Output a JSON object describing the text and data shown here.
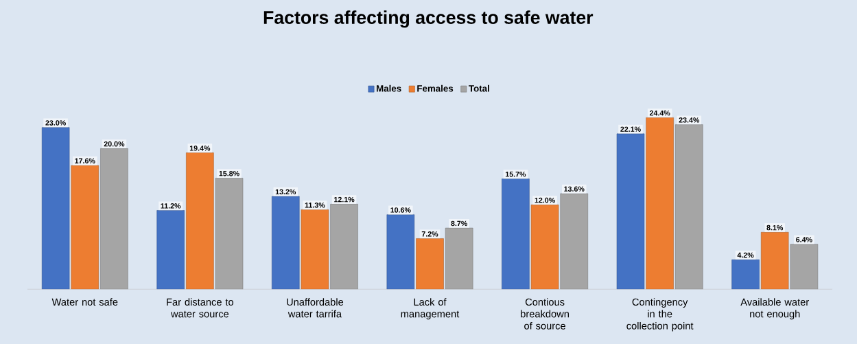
{
  "chart_data": {
    "type": "bar",
    "title": "Factors affecting access to safe water",
    "tick_labels": "x",
    "legend": "top",
    "categories": [
      "Water not safe",
      "Far distance to water source",
      "Unaffordable water tarrifa",
      "Lack of management",
      "Contious breakdown of source",
      "Contingency in the collection point",
      "Available water not enough"
    ],
    "series": [
      {
        "name": "Males",
        "color": "#4472c4",
        "values": [
          23.0,
          11.2,
          13.2,
          10.6,
          15.7,
          22.1,
          4.2
        ],
        "value_labels": [
          "23.0%",
          "11.2%",
          "13.2%",
          "10.6%",
          "15.7%",
          "22.1%",
          "4.2%"
        ]
      },
      {
        "name": "Females",
        "color": "#ed7d31",
        "values": [
          17.6,
          19.4,
          11.3,
          7.2,
          12.0,
          24.4,
          8.1
        ],
        "value_labels": [
          "17.6%",
          "19.4%",
          "11.3%",
          "7.2%",
          "12.0%",
          "24.4%",
          "8.1%"
        ]
      },
      {
        "name": "Total",
        "color": "#a5a5a5",
        "values": [
          20.0,
          15.8,
          12.1,
          8.7,
          13.6,
          23.4,
          6.4
        ],
        "value_labels": [
          "20.0%",
          "15.8%",
          "12.1%",
          "8.7%",
          "13.6%",
          "23.4%",
          "6.4%"
        ]
      }
    ]
  }
}
